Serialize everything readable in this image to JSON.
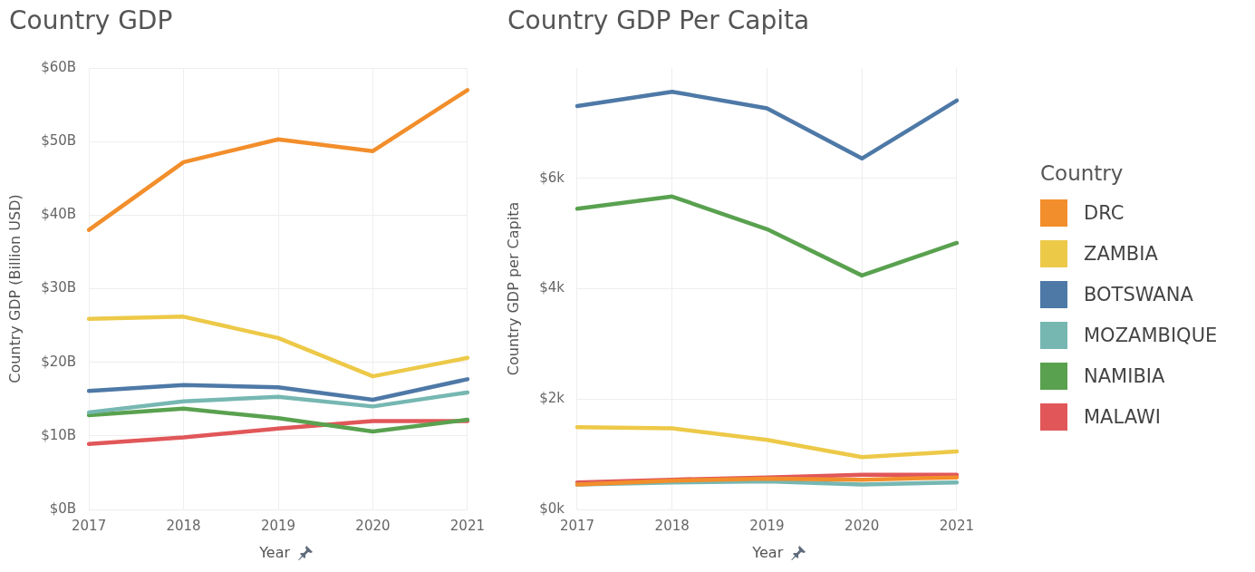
{
  "chart_data": [
    {
      "type": "line",
      "title": "Country GDP",
      "xlabel": "Year",
      "ylabel": "Country GDP (Billion USD)",
      "categories": [
        "2017",
        "2018",
        "2019",
        "2020",
        "2021"
      ],
      "series": [
        {
          "color": "#f28e2b",
          "values": [
            38.0,
            47.2,
            50.3,
            48.7,
            57.0
          ]
        },
        {
          "color": "#edc948",
          "values": [
            25.9,
            26.2,
            23.3,
            18.1,
            20.6
          ]
        },
        {
          "color": "#4e79a7",
          "values": [
            16.1,
            16.9,
            16.6,
            14.9,
            17.7
          ]
        },
        {
          "color": "#76b7b2",
          "values": [
            13.2,
            14.7,
            15.3,
            14.0,
            15.9
          ]
        },
        {
          "color": "#59a14f",
          "values": [
            12.8,
            13.7,
            12.4,
            10.6,
            12.2
          ]
        },
        {
          "color": "#e15759",
          "values": [
            8.9,
            9.8,
            11.0,
            12.0,
            12.0
          ]
        }
      ],
      "ylim": [
        0,
        60
      ],
      "yticks": [
        {
          "value": 0,
          "label": "$0B"
        },
        {
          "value": 10,
          "label": "$10B"
        },
        {
          "value": 20,
          "label": "$20B"
        },
        {
          "value": 30,
          "label": "$30B"
        },
        {
          "value": 40,
          "label": "$40B"
        },
        {
          "value": 50,
          "label": "$50B"
        },
        {
          "value": 60,
          "label": "$60B"
        }
      ],
      "grid": true,
      "marker": "none",
      "line_style": "solid"
    },
    {
      "type": "line",
      "title": "Country GDP Per Capita",
      "xlabel": "Year",
      "ylabel": "Country GDP per Capita",
      "categories": [
        "2017",
        "2018",
        "2019",
        "2020",
        "2021"
      ],
      "series": [
        {
          "name": "DRC",
          "color": "#f28e2b",
          "values": [
            450,
            520,
            560,
            540,
            580
          ]
        },
        {
          "name": "ZAMBIA",
          "color": "#edc948",
          "values": [
            1490,
            1470,
            1260,
            950,
            1050
          ]
        },
        {
          "name": "BOTSWANA",
          "color": "#4e79a7",
          "values": [
            7310,
            7570,
            7270,
            6360,
            7410
          ]
        },
        {
          "name": "MOZAMBIQUE",
          "color": "#76b7b2",
          "values": [
            450,
            490,
            510,
            450,
            490
          ]
        },
        {
          "name": "NAMIBIA",
          "color": "#59a14f",
          "values": [
            5450,
            5670,
            5080,
            4240,
            4830
          ]
        },
        {
          "name": "MALAWI",
          "color": "#e15759",
          "values": [
            490,
            540,
            580,
            630,
            630
          ]
        }
      ],
      "ylim": [
        0,
        8000
      ],
      "yticks": [
        {
          "value": 0,
          "label": "$0k"
        },
        {
          "value": 2000,
          "label": "$2k"
        },
        {
          "value": 4000,
          "label": "$4k"
        },
        {
          "value": 6000,
          "label": "$6k"
        }
      ],
      "grid": true,
      "legend": "right",
      "legend_title": "Country",
      "marker": "none",
      "line_style": "solid"
    }
  ]
}
